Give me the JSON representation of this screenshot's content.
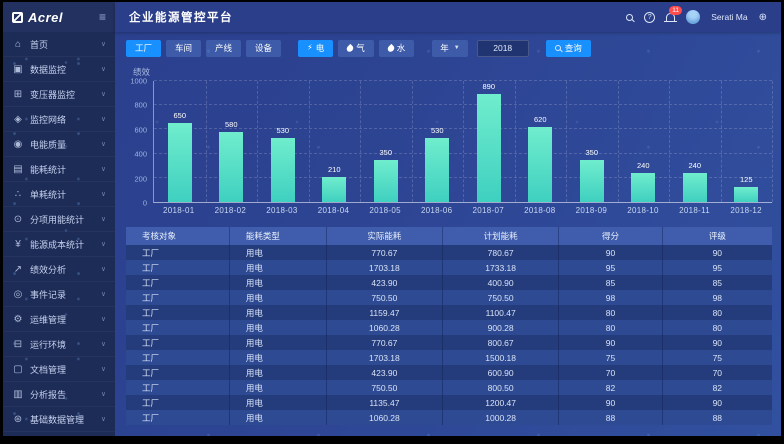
{
  "app": {
    "logo_text": "Acrel",
    "title": "企业能源管控平台",
    "user_name": "Serati Ma",
    "notification_count": "11"
  },
  "sidebar": {
    "items": [
      {
        "label": "首页",
        "icon": "home",
        "glyph": "⌂"
      },
      {
        "label": "数据监控",
        "icon": "data-monitor",
        "glyph": "▣"
      },
      {
        "label": "变压器监控",
        "icon": "transformer-monitor",
        "glyph": "⊞"
      },
      {
        "label": "监控网络",
        "icon": "monitor-network",
        "glyph": "◈"
      },
      {
        "label": "电能质量",
        "icon": "power-quality",
        "glyph": "◉"
      },
      {
        "label": "能耗统计",
        "icon": "energy-consumption-stats",
        "glyph": "▤"
      },
      {
        "label": "单耗统计",
        "icon": "unit-consumption-stats",
        "glyph": "∴"
      },
      {
        "label": "分项用能统计",
        "icon": "subitem-energy-stats",
        "glyph": "⊙"
      },
      {
        "label": "能源成本统计",
        "icon": "energy-cost-stats",
        "glyph": "¥"
      },
      {
        "label": "绩效分析",
        "icon": "performance-analysis",
        "glyph": "↗"
      },
      {
        "label": "事件记录",
        "icon": "event-records",
        "glyph": "◎"
      },
      {
        "label": "运维管理",
        "icon": "operation-maintenance",
        "glyph": "⚙"
      },
      {
        "label": "运行环境",
        "icon": "running-environment",
        "glyph": "⊟"
      },
      {
        "label": "文档管理",
        "icon": "document-management",
        "glyph": "▢"
      },
      {
        "label": "分析报告",
        "icon": "analysis-report",
        "glyph": "▥"
      },
      {
        "label": "基础数据管理",
        "icon": "basic-data-management",
        "glyph": "⊛"
      }
    ]
  },
  "filters": {
    "scope_tabs": [
      {
        "label": "工厂",
        "active": true
      },
      {
        "label": "车间",
        "active": false
      },
      {
        "label": "产线",
        "active": false
      },
      {
        "label": "设备",
        "active": false
      }
    ],
    "energy_tabs": [
      {
        "label": "电",
        "icon": "bolt",
        "active": true
      },
      {
        "label": "气",
        "icon": "flame",
        "active": false
      },
      {
        "label": "水",
        "icon": "water-drop",
        "active": false
      }
    ],
    "period_label": "年",
    "year_value": "2018",
    "search_label": "查询"
  },
  "chart_data": {
    "type": "bar",
    "title": "绩效",
    "categories": [
      "2018-01",
      "2018-02",
      "2018-03",
      "2018-04",
      "2018-05",
      "2018-06",
      "2018-07",
      "2018-08",
      "2018-09",
      "2018-10",
      "2018-11",
      "2018-12"
    ],
    "values": [
      650,
      580,
      530,
      210,
      350,
      530,
      890,
      620,
      350,
      240,
      240,
      125
    ],
    "xlabel": "",
    "ylabel": "绩效",
    "ylim": [
      0,
      1000
    ],
    "y_ticks": [
      0,
      200,
      400,
      600,
      800,
      1000
    ],
    "grid": true,
    "legend": false,
    "bar_color_top": "#70edcd",
    "bar_color_bottom": "#3fd0c0"
  },
  "table": {
    "columns": [
      "考核对象",
      "能耗类型",
      "实际能耗",
      "计划能耗",
      "得分",
      "评级"
    ],
    "rows": [
      [
        "工厂",
        "用电",
        "770.67",
        "780.67",
        "90",
        "90"
      ],
      [
        "工厂",
        "用电",
        "1703.18",
        "1733.18",
        "95",
        "95"
      ],
      [
        "工厂",
        "用电",
        "423.90",
        "400.90",
        "85",
        "85"
      ],
      [
        "工厂",
        "用电",
        "750.50",
        "750.50",
        "98",
        "98"
      ],
      [
        "工厂",
        "用电",
        "1159.47",
        "1100.47",
        "80",
        "80"
      ],
      [
        "工厂",
        "用电",
        "1060.28",
        "900.28",
        "80",
        "80"
      ],
      [
        "工厂",
        "用电",
        "770.67",
        "800.67",
        "90",
        "90"
      ],
      [
        "工厂",
        "用电",
        "1703.18",
        "1500.18",
        "75",
        "75"
      ],
      [
        "工厂",
        "用电",
        "423.90",
        "600.90",
        "70",
        "70"
      ],
      [
        "工厂",
        "用电",
        "750.50",
        "800.50",
        "82",
        "82"
      ],
      [
        "工厂",
        "用电",
        "1135.47",
        "1200.47",
        "90",
        "90"
      ],
      [
        "工厂",
        "用电",
        "1060.28",
        "1000.28",
        "88",
        "88"
      ]
    ]
  }
}
